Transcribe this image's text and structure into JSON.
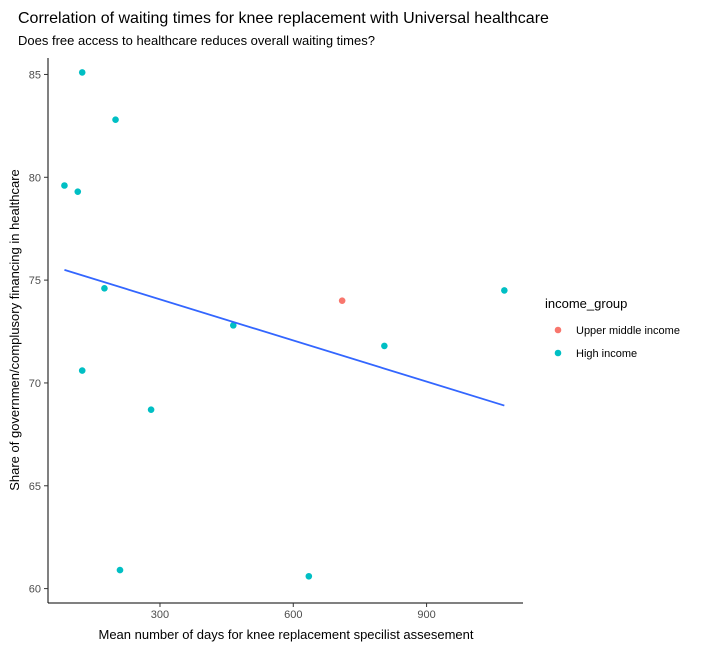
{
  "chart_data": {
    "type": "scatter",
    "title": "Correlation of waiting times for knee replacement with Universal healthcare",
    "subtitle": "Does free access to healthcare reduces overall waiting times?",
    "xlabel": "Mean number of days for knee replacement specilist assesement",
    "ylabel": "Share of governmen/complusory financing in healthcare",
    "xlim": [
      48,
      1117
    ],
    "ylim": [
      59.3,
      85.8
    ],
    "x_ticks": [
      300,
      600,
      900
    ],
    "y_ticks": [
      60,
      65,
      70,
      75,
      80,
      85
    ],
    "grid": false,
    "legend": {
      "title": "income_group",
      "position": "right",
      "entries": [
        {
          "label": "Upper middle income",
          "color": "#F8766D"
        },
        {
          "label": "High income",
          "color": "#00BFC4"
        }
      ]
    },
    "series": [
      {
        "name": "Upper middle income",
        "color": "#F8766D",
        "points": [
          {
            "x": 710,
            "y": 74.0
          }
        ]
      },
      {
        "name": "High income",
        "color": "#00BFC4",
        "points": [
          {
            "x": 85,
            "y": 79.6
          },
          {
            "x": 115,
            "y": 79.3
          },
          {
            "x": 125,
            "y": 85.1
          },
          {
            "x": 125,
            "y": 70.6
          },
          {
            "x": 175,
            "y": 74.6
          },
          {
            "x": 200,
            "y": 82.8
          },
          {
            "x": 210,
            "y": 60.9
          },
          {
            "x": 280,
            "y": 68.7
          },
          {
            "x": 465,
            "y": 72.8
          },
          {
            "x": 635,
            "y": 60.6
          },
          {
            "x": 805,
            "y": 71.8
          },
          {
            "x": 1075,
            "y": 74.5
          }
        ]
      }
    ],
    "trendline": {
      "color": "#3366FF",
      "x": [
        85,
        1075
      ],
      "y": [
        75.5,
        68.9
      ]
    }
  }
}
